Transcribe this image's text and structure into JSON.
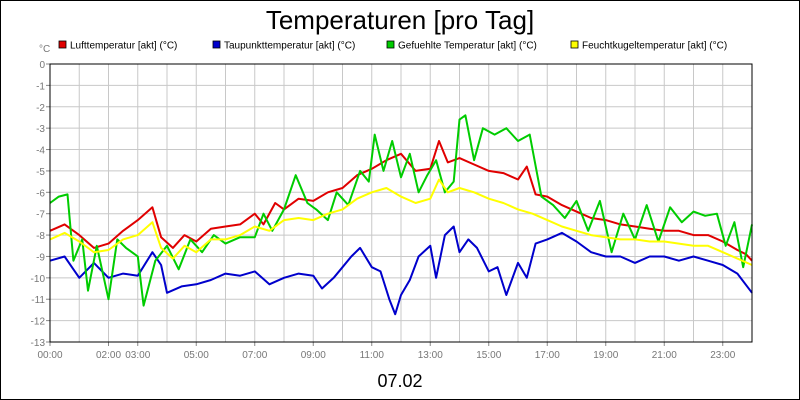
{
  "chart_data": {
    "type": "line",
    "title": "Temperaturen [pro Tag]",
    "ylabel": "°C",
    "xlabel": "07.02",
    "ylim": [
      -13,
      0
    ],
    "yticks": [
      0,
      -1,
      -2,
      -3,
      -4,
      -5,
      -6,
      -7,
      -8,
      -9,
      -10,
      -11,
      -12,
      -13
    ],
    "xlim": [
      0,
      24
    ],
    "xticks": [
      {
        "x": 0,
        "label": "00:00"
      },
      {
        "x": 2,
        "label": "02:00"
      },
      {
        "x": 3,
        "label": "03:00"
      },
      {
        "x": 5,
        "label": "05:00"
      },
      {
        "x": 7,
        "label": "07:00"
      },
      {
        "x": 9,
        "label": "09:00"
      },
      {
        "x": 11,
        "label": "11:00"
      },
      {
        "x": 13,
        "label": "13:00"
      },
      {
        "x": 15,
        "label": "15:00"
      },
      {
        "x": 17,
        "label": "17:00"
      },
      {
        "x": 19,
        "label": "19:00"
      },
      {
        "x": 21,
        "label": "21:00"
      },
      {
        "x": 23,
        "label": "23:00"
      }
    ],
    "grid": true,
    "legend_position": "top",
    "series": [
      {
        "name": "Lufttemperatur [akt] (°C)",
        "color": "#e00000",
        "points": [
          [
            0,
            -7.8
          ],
          [
            0.5,
            -7.5
          ],
          [
            1,
            -8.0
          ],
          [
            1.5,
            -8.6
          ],
          [
            2,
            -8.4
          ],
          [
            2.5,
            -7.8
          ],
          [
            3,
            -7.3
          ],
          [
            3.5,
            -6.7
          ],
          [
            3.8,
            -8.1
          ],
          [
            4.2,
            -8.6
          ],
          [
            4.6,
            -8.0
          ],
          [
            5,
            -8.3
          ],
          [
            5.5,
            -7.7
          ],
          [
            6,
            -7.6
          ],
          [
            6.5,
            -7.5
          ],
          [
            7,
            -7.0
          ],
          [
            7.3,
            -7.5
          ],
          [
            7.7,
            -6.5
          ],
          [
            8,
            -6.8
          ],
          [
            8.5,
            -6.3
          ],
          [
            9,
            -6.4
          ],
          [
            9.5,
            -6.0
          ],
          [
            10,
            -5.8
          ],
          [
            10.5,
            -5.2
          ],
          [
            11,
            -4.9
          ],
          [
            11.5,
            -4.5
          ],
          [
            12,
            -4.2
          ],
          [
            12.5,
            -5.0
          ],
          [
            13,
            -4.9
          ],
          [
            13.3,
            -3.6
          ],
          [
            13.6,
            -4.6
          ],
          [
            14,
            -4.4
          ],
          [
            14.5,
            -4.7
          ],
          [
            15,
            -5.0
          ],
          [
            15.5,
            -5.1
          ],
          [
            16,
            -5.4
          ],
          [
            16.3,
            -4.8
          ],
          [
            16.6,
            -6.1
          ],
          [
            17,
            -6.2
          ],
          [
            17.5,
            -6.6
          ],
          [
            18,
            -6.9
          ],
          [
            18.5,
            -7.2
          ],
          [
            19,
            -7.3
          ],
          [
            19.5,
            -7.5
          ],
          [
            20,
            -7.6
          ],
          [
            20.5,
            -7.7
          ],
          [
            21,
            -7.8
          ],
          [
            21.5,
            -7.8
          ],
          [
            22,
            -8.0
          ],
          [
            22.5,
            -8.0
          ],
          [
            23,
            -8.3
          ],
          [
            23.5,
            -8.7
          ],
          [
            23.8,
            -8.9
          ],
          [
            24,
            -9.2
          ]
        ]
      },
      {
        "name": "Taupunkttemperatur [akt] (°C)",
        "color": "#0000cc",
        "points": [
          [
            0,
            -9.2
          ],
          [
            0.5,
            -9.0
          ],
          [
            0.8,
            -9.6
          ],
          [
            1,
            -10.0
          ],
          [
            1.5,
            -9.3
          ],
          [
            2,
            -10.0
          ],
          [
            2.5,
            -9.8
          ],
          [
            3,
            -9.9
          ],
          [
            3.5,
            -8.8
          ],
          [
            3.8,
            -9.4
          ],
          [
            4,
            -10.7
          ],
          [
            4.5,
            -10.4
          ],
          [
            5,
            -10.3
          ],
          [
            5.5,
            -10.1
          ],
          [
            6,
            -9.8
          ],
          [
            6.5,
            -9.9
          ],
          [
            7,
            -9.7
          ],
          [
            7.5,
            -10.3
          ],
          [
            8,
            -10.0
          ],
          [
            8.5,
            -9.8
          ],
          [
            9,
            -9.9
          ],
          [
            9.3,
            -10.5
          ],
          [
            9.7,
            -10.0
          ],
          [
            10,
            -9.5
          ],
          [
            10.3,
            -9.0
          ],
          [
            10.6,
            -8.6
          ],
          [
            11,
            -9.5
          ],
          [
            11.3,
            -9.7
          ],
          [
            11.6,
            -11.0
          ],
          [
            11.8,
            -11.7
          ],
          [
            12,
            -10.8
          ],
          [
            12.3,
            -10.1
          ],
          [
            12.6,
            -9.0
          ],
          [
            13,
            -8.5
          ],
          [
            13.2,
            -10.0
          ],
          [
            13.5,
            -8.0
          ],
          [
            13.8,
            -7.6
          ],
          [
            14,
            -8.8
          ],
          [
            14.3,
            -8.2
          ],
          [
            14.6,
            -8.6
          ],
          [
            15,
            -9.7
          ],
          [
            15.3,
            -9.5
          ],
          [
            15.6,
            -10.8
          ],
          [
            16,
            -9.3
          ],
          [
            16.3,
            -10.0
          ],
          [
            16.6,
            -8.4
          ],
          [
            17,
            -8.2
          ],
          [
            17.5,
            -7.9
          ],
          [
            18,
            -8.3
          ],
          [
            18.5,
            -8.8
          ],
          [
            19,
            -9.0
          ],
          [
            19.5,
            -9.0
          ],
          [
            20,
            -9.3
          ],
          [
            20.5,
            -9.0
          ],
          [
            21,
            -9.0
          ],
          [
            21.5,
            -9.2
          ],
          [
            22,
            -9.0
          ],
          [
            22.5,
            -9.2
          ],
          [
            23,
            -9.4
          ],
          [
            23.5,
            -9.8
          ],
          [
            24,
            -10.7
          ]
        ]
      },
      {
        "name": "Gefuehlte Temperatur [akt] (°C)",
        "color": "#00cc00",
        "points": [
          [
            0,
            -6.5
          ],
          [
            0.3,
            -6.2
          ],
          [
            0.6,
            -6.1
          ],
          [
            0.8,
            -9.2
          ],
          [
            1.1,
            -8.2
          ],
          [
            1.3,
            -10.6
          ],
          [
            1.6,
            -8.5
          ],
          [
            2,
            -11.0
          ],
          [
            2.3,
            -8.2
          ],
          [
            2.6,
            -8.6
          ],
          [
            3,
            -9.0
          ],
          [
            3.2,
            -11.3
          ],
          [
            3.6,
            -9.2
          ],
          [
            4,
            -8.5
          ],
          [
            4.4,
            -9.6
          ],
          [
            4.8,
            -8.2
          ],
          [
            5.2,
            -8.8
          ],
          [
            5.6,
            -8.0
          ],
          [
            6,
            -8.4
          ],
          [
            6.5,
            -8.1
          ],
          [
            7,
            -8.1
          ],
          [
            7.3,
            -7.0
          ],
          [
            7.6,
            -7.8
          ],
          [
            8,
            -6.8
          ],
          [
            8.4,
            -5.2
          ],
          [
            8.8,
            -6.5
          ],
          [
            9.1,
            -6.8
          ],
          [
            9.5,
            -7.3
          ],
          [
            9.8,
            -6.0
          ],
          [
            10.2,
            -6.6
          ],
          [
            10.6,
            -5.0
          ],
          [
            10.9,
            -5.5
          ],
          [
            11.1,
            -3.3
          ],
          [
            11.4,
            -5.0
          ],
          [
            11.7,
            -3.6
          ],
          [
            12,
            -5.3
          ],
          [
            12.3,
            -4.2
          ],
          [
            12.6,
            -6.0
          ],
          [
            12.9,
            -5.2
          ],
          [
            13.2,
            -4.5
          ],
          [
            13.5,
            -6.0
          ],
          [
            13.8,
            -5.5
          ],
          [
            14,
            -2.6
          ],
          [
            14.2,
            -2.4
          ],
          [
            14.5,
            -4.5
          ],
          [
            14.8,
            -3.0
          ],
          [
            15.2,
            -3.3
          ],
          [
            15.6,
            -3.0
          ],
          [
            16,
            -3.6
          ],
          [
            16.4,
            -3.3
          ],
          [
            16.8,
            -6.2
          ],
          [
            17.2,
            -6.6
          ],
          [
            17.6,
            -7.2
          ],
          [
            18,
            -6.4
          ],
          [
            18.4,
            -7.8
          ],
          [
            18.8,
            -6.4
          ],
          [
            19.2,
            -8.8
          ],
          [
            19.6,
            -7.0
          ],
          [
            20,
            -8.2
          ],
          [
            20.4,
            -6.6
          ],
          [
            20.8,
            -8.3
          ],
          [
            21.2,
            -6.7
          ],
          [
            21.6,
            -7.4
          ],
          [
            22,
            -6.9
          ],
          [
            22.4,
            -7.1
          ],
          [
            22.8,
            -7.0
          ],
          [
            23.1,
            -8.5
          ],
          [
            23.4,
            -7.4
          ],
          [
            23.7,
            -9.5
          ],
          [
            24,
            -7.5
          ]
        ]
      },
      {
        "name": "Feuchtkugeltemperatur [akt] (°C)",
        "color": "#ffff00",
        "points": [
          [
            0,
            -8.2
          ],
          [
            0.5,
            -7.9
          ],
          [
            1,
            -8.3
          ],
          [
            1.5,
            -8.8
          ],
          [
            2,
            -8.7
          ],
          [
            2.5,
            -8.2
          ],
          [
            3,
            -8.0
          ],
          [
            3.5,
            -7.4
          ],
          [
            3.8,
            -8.6
          ],
          [
            4.2,
            -9.1
          ],
          [
            4.6,
            -8.5
          ],
          [
            5,
            -8.8
          ],
          [
            5.5,
            -8.2
          ],
          [
            6,
            -8.2
          ],
          [
            6.5,
            -8.0
          ],
          [
            7,
            -7.6
          ],
          [
            7.5,
            -7.8
          ],
          [
            8,
            -7.3
          ],
          [
            8.5,
            -7.2
          ],
          [
            9,
            -7.3
          ],
          [
            9.5,
            -7.0
          ],
          [
            10,
            -6.8
          ],
          [
            10.5,
            -6.3
          ],
          [
            11,
            -6.0
          ],
          [
            11.5,
            -5.8
          ],
          [
            12,
            -6.2
          ],
          [
            12.5,
            -6.5
          ],
          [
            13,
            -6.3
          ],
          [
            13.3,
            -5.4
          ],
          [
            13.6,
            -6.0
          ],
          [
            14,
            -5.8
          ],
          [
            14.5,
            -6.0
          ],
          [
            15,
            -6.3
          ],
          [
            15.5,
            -6.5
          ],
          [
            16,
            -6.8
          ],
          [
            16.5,
            -7.0
          ],
          [
            17,
            -7.3
          ],
          [
            17.5,
            -7.6
          ],
          [
            18,
            -7.8
          ],
          [
            18.5,
            -8.0
          ],
          [
            19,
            -8.1
          ],
          [
            19.5,
            -8.2
          ],
          [
            20,
            -8.2
          ],
          [
            20.5,
            -8.3
          ],
          [
            21,
            -8.3
          ],
          [
            21.5,
            -8.4
          ],
          [
            22,
            -8.5
          ],
          [
            22.5,
            -8.5
          ],
          [
            23,
            -8.8
          ],
          [
            23.5,
            -9.1
          ],
          [
            24,
            -9.4
          ]
        ]
      }
    ]
  }
}
